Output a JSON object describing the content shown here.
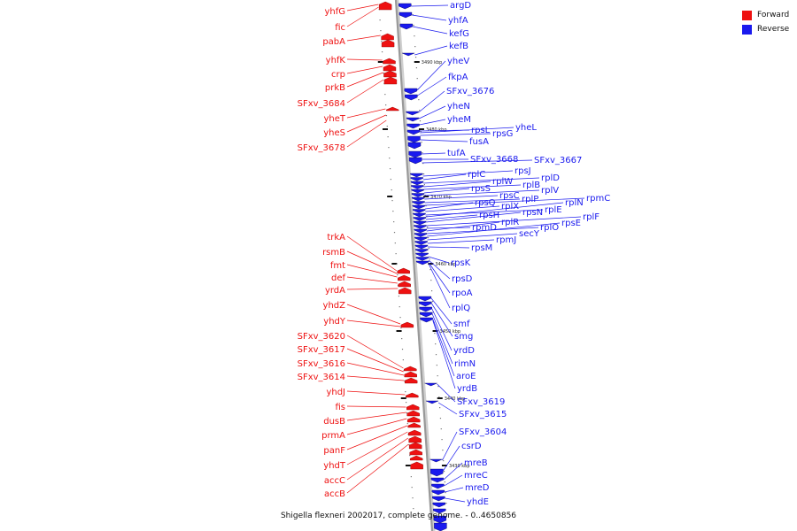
{
  "caption": "Shigella flexneri 2002017, complete genome. - 0..4650856",
  "colors": {
    "forward": "#ee1111",
    "reverse": "#1a1aee",
    "backbone": "#999999"
  },
  "legend": [
    {
      "label": "Forward",
      "color": "#ee1111"
    },
    {
      "label": "Reverse",
      "color": "#1a1aee"
    }
  ],
  "ticks": [
    "3490 kbp",
    "3480 kbp",
    "3470 kbp",
    "3460 kbp",
    "3450 kbp",
    "3440 kbp",
    "3430 kbp"
  ],
  "forward_genes": [
    "yhfG",
    "fic",
    "pabA",
    "yhfK",
    "crp",
    "prkB",
    "SFxv_3684",
    "yheT",
    "yheS",
    "SFxv_3678",
    "trkA",
    "rsmB",
    "fmt",
    "def",
    "yrdA",
    "yhdZ",
    "yhdY",
    "SFxv_3620",
    "SFxv_3617",
    "SFxv_3616",
    "SFxv_3614",
    "yhdJ",
    "fis",
    "dusB",
    "prmA",
    "panF",
    "yhdT",
    "accC",
    "accB"
  ],
  "reverse_genes": [
    "argD",
    "yhfA",
    "kefG",
    "kefB",
    "yheV",
    "fkpA",
    "SFxv_3676",
    "yheN",
    "yheM",
    "rpsL",
    "yheL",
    "rpsG",
    "fusA",
    "tufA",
    "SFxv_3668",
    "SFxv_3667",
    "rpsJ",
    "rplC",
    "rplD",
    "rplW",
    "rplB",
    "rpsS",
    "rplV",
    "rpsC",
    "rplP",
    "rpmC",
    "rpsQ",
    "rplX",
    "rplE",
    "rplN",
    "rpsH",
    "rpsN",
    "rplF",
    "rpmD",
    "rplR",
    "rplO",
    "rpsE",
    "secY",
    "rpmJ",
    "rpsM",
    "rpsK",
    "rpsD",
    "rpoA",
    "rplQ",
    "smf",
    "smg",
    "yrdD",
    "rimN",
    "aroE",
    "yrdB",
    "SFxv_3619",
    "SFxv_3615",
    "SFxv_3604",
    "csrD",
    "mreB",
    "mreC",
    "mreD",
    "yhdE"
  ]
}
